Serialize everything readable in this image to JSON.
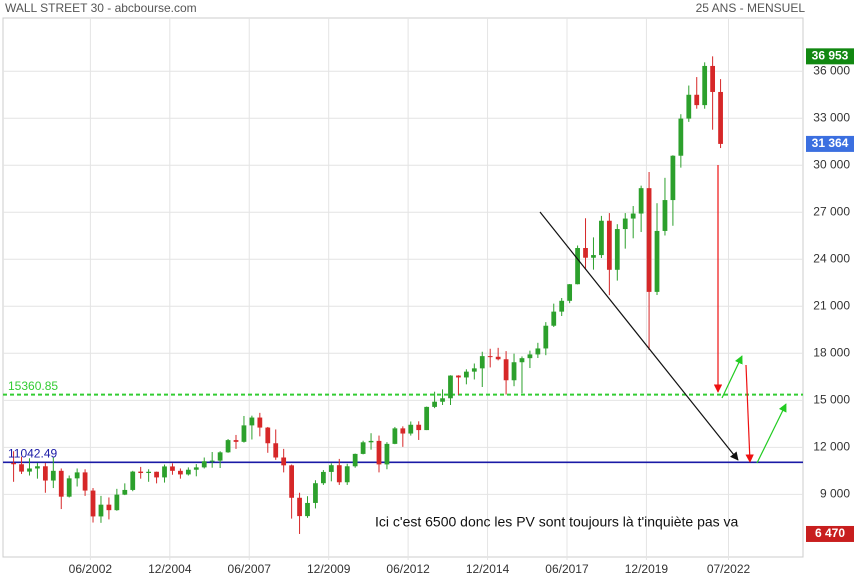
{
  "chart_data": {
    "type": "candlestick",
    "title": "WALL STREET 30 - abcbourse.com",
    "subtitle": "25 ANS - MENSUEL",
    "annotation": "Ici c'est 6500 donc les PV sont toujours là t'inquiète pas va",
    "up_color": "#2ca02c",
    "down_color": "#d62728",
    "grid": true,
    "xlim": [
      "1999-09",
      "2024-10"
    ],
    "xticks": [
      {
        "value": "2002-06",
        "label": "06/2002"
      },
      {
        "value": "2004-12",
        "label": "12/2004"
      },
      {
        "value": "2007-06",
        "label": "06/2007"
      },
      {
        "value": "2009-12",
        "label": "12/2009"
      },
      {
        "value": "2012-06",
        "label": "06/2012"
      },
      {
        "value": "2014-12",
        "label": "12/2014"
      },
      {
        "value": "2017-06",
        "label": "06/2017"
      },
      {
        "value": "2019-12",
        "label": "12/2019"
      },
      {
        "value": "2022-07",
        "label": "07/2022"
      }
    ],
    "ylim": [
      5000,
      39400
    ],
    "yticks": [
      {
        "value": 9000,
        "label": "9 000"
      },
      {
        "value": 12000,
        "label": "12 000"
      },
      {
        "value": 15000,
        "label": "15 000"
      },
      {
        "value": 18000,
        "label": "18 000"
      },
      {
        "value": 21000,
        "label": "21 000"
      },
      {
        "value": 24000,
        "label": "24 000"
      },
      {
        "value": 27000,
        "label": "27 000"
      },
      {
        "value": 30000,
        "label": "30 000"
      },
      {
        "value": 33000,
        "label": "33 000"
      },
      {
        "value": 36000,
        "label": "36 000"
      }
    ],
    "levels": [
      {
        "value": 15360.85,
        "label": "15360.85",
        "color": "#33cc33",
        "style": "dashed"
      },
      {
        "value": 11042.49,
        "label": "11042.49",
        "color": "#1a1aa6",
        "style": "solid"
      }
    ],
    "price_labels": [
      {
        "value": 36953,
        "label": "36 953",
        "color": "#118811"
      },
      {
        "value": 31364,
        "label": "31 364",
        "color": "#3b6fe0"
      },
      {
        "value": 6470,
        "label": "6 470",
        "color": "#c81e1e"
      }
    ],
    "x": [
      "2000-01",
      "2000-04",
      "2000-07",
      "2000-10",
      "2001-01",
      "2001-04",
      "2001-07",
      "2001-10",
      "2002-01",
      "2002-04",
      "2002-07",
      "2002-10",
      "2003-01",
      "2003-04",
      "2003-07",
      "2003-10",
      "2004-01",
      "2004-04",
      "2004-07",
      "2004-10",
      "2005-01",
      "2005-04",
      "2005-07",
      "2005-10",
      "2006-01",
      "2006-04",
      "2006-07",
      "2006-10",
      "2007-01",
      "2007-04",
      "2007-07",
      "2007-10",
      "2008-01",
      "2008-04",
      "2008-07",
      "2008-10",
      "2009-01",
      "2009-04",
      "2009-07",
      "2009-10",
      "2010-01",
      "2010-04",
      "2010-07",
      "2010-10",
      "2011-01",
      "2011-04",
      "2011-07",
      "2011-10",
      "2012-01",
      "2012-04",
      "2012-07",
      "2012-10",
      "2013-01",
      "2013-04",
      "2013-07",
      "2013-10",
      "2014-01",
      "2014-04",
      "2014-07",
      "2014-10",
      "2015-01",
      "2015-04",
      "2015-07",
      "2015-10",
      "2016-01",
      "2016-04",
      "2016-07",
      "2016-10",
      "2017-01",
      "2017-04",
      "2017-07",
      "2017-10",
      "2018-01",
      "2018-04",
      "2018-07",
      "2018-10",
      "2019-01",
      "2019-04",
      "2019-07",
      "2019-10",
      "2020-01",
      "2020-04",
      "2020-07",
      "2020-10",
      "2021-01",
      "2021-04",
      "2021-07",
      "2021-10",
      "2022-01",
      "2022-04"
    ],
    "open": [
      11000,
      10920,
      10450,
      10650,
      10790,
      9880,
      10500,
      8850,
      10020,
      10400,
      9240,
      7590,
      8340,
      7990,
      8980,
      9280,
      10450,
      10360,
      10440,
      10080,
      10780,
      10500,
      10270,
      10570,
      10720,
      11110,
      11150,
      11680,
      12460,
      12350,
      13400,
      13900,
      13260,
      12260,
      11350,
      10850,
      8780,
      7610,
      8450,
      9710,
      10430,
      10860,
      9770,
      10790,
      11580,
      12320,
      12410,
      10910,
      12220,
      13210,
      12880,
      13440,
      13100,
      14580,
      14910,
      15130,
      16580,
      16460,
      16830,
      17040,
      17820,
      17780,
      17620,
      16280,
      17430,
      17690,
      17930,
      18310,
      19760,
      20660,
      21350,
      22410,
      24720,
      24100,
      24270,
      26460,
      23330,
      25930,
      26600,
      26920,
      28540,
      21920,
      25810,
      27780,
      30610,
      32980,
      34500,
      33840,
      36340,
      34680
    ],
    "high": [
      11750,
      11400,
      11300,
      11000,
      11000,
      11350,
      10650,
      10200,
      10650,
      10600,
      9400,
      8900,
      8800,
      9350,
      9700,
      10500,
      10750,
      10600,
      10450,
      10900,
      10980,
      10650,
      10720,
      10930,
      11350,
      11700,
      11750,
      12530,
      12790,
      14000,
      14020,
      14200,
      13300,
      13140,
      11900,
      10900,
      9100,
      8880,
      9900,
      10550,
      10980,
      11260,
      10950,
      11600,
      12420,
      12900,
      12750,
      12330,
      13300,
      13340,
      13650,
      13660,
      14600,
      15550,
      15700,
      16600,
      16600,
      16980,
      17350,
      18100,
      18290,
      18350,
      18140,
      17980,
      17800,
      18170,
      18670,
      19990,
      21170,
      21530,
      22420,
      24880,
      26620,
      25400,
      26770,
      26950,
      26240,
      26950,
      27400,
      28700,
      29570,
      27580,
      29200,
      30640,
      33260,
      35090,
      35630,
      36570,
      36953,
      35500
    ],
    "low": [
      9800,
      10300,
      10200,
      10000,
      9100,
      9400,
      8060,
      8800,
      9500,
      8900,
      7200,
      7180,
      7400,
      7950,
      8950,
      9200,
      10000,
      9800,
      9700,
      9750,
      10250,
      10000,
      10200,
      10150,
      10650,
      10700,
      10680,
      11650,
      11900,
      12300,
      12500,
      12700,
      11650,
      11200,
      10400,
      7450,
      6470,
      7500,
      8100,
      9600,
      9830,
      9600,
      9600,
      10700,
      11550,
      11850,
      10400,
      10600,
      12200,
      12030,
      12750,
      12470,
      13100,
      14500,
      14700,
      14700,
      15340,
      16020,
      16330,
      15850,
      17100,
      17550,
      15370,
      15900,
      15450,
      17060,
      17700,
      17880,
      19680,
      20380,
      21200,
      22400,
      23340,
      23340,
      24080,
      21710,
      22640,
      24680,
      25340,
      25740,
      18210,
      21720,
      25520,
      26140,
      29850,
      32770,
      33610,
      33610,
      32270,
      31100
    ],
    "close": [
      10920,
      10450,
      10650,
      10790,
      9880,
      10500,
      8850,
      10020,
      10400,
      9240,
      7590,
      8340,
      7990,
      8980,
      9280,
      10450,
      10360,
      10440,
      10080,
      10780,
      10500,
      10270,
      10570,
      10720,
      11110,
      11150,
      11680,
      12460,
      12350,
      13400,
      13900,
      13260,
      12260,
      11350,
      10850,
      8780,
      7610,
      8450,
      9710,
      10430,
      10860,
      9770,
      10790,
      11580,
      12320,
      12410,
      10910,
      12220,
      13210,
      12880,
      13440,
      13100,
      14580,
      14910,
      15130,
      16580,
      16460,
      16830,
      17040,
      17820,
      17780,
      17620,
      16280,
      17430,
      17690,
      17930,
      18310,
      19760,
      20660,
      21350,
      22410,
      24720,
      24100,
      24270,
      26460,
      23330,
      25930,
      26600,
      26920,
      28540,
      21920,
      25810,
      27780,
      30610,
      32980,
      34500,
      33840,
      36340,
      34680,
      31364
    ]
  }
}
